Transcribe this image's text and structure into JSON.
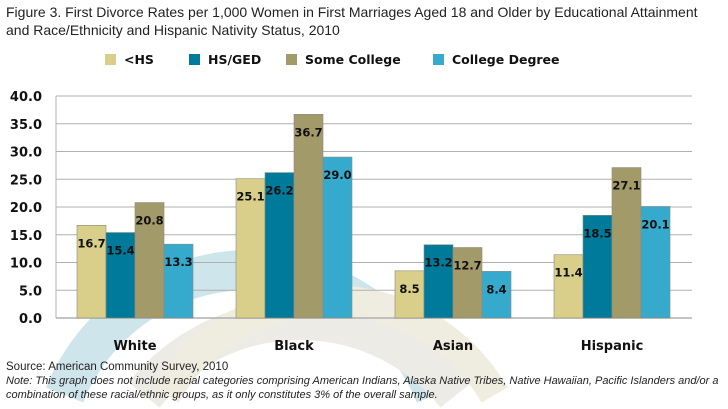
{
  "chart_data": {
    "type": "bar",
    "title": "Figure 3. First Divorce Rates per 1,000 Women in First Marriages Aged 18 and Older by Educational Attainment and Race/Ethnicity and Hispanic Nativity Status, 2010",
    "categories": [
      "White",
      "Black",
      "Asian",
      "Hispanic"
    ],
    "series": [
      {
        "name": "<HS",
        "color": "#d9cf8a",
        "values": [
          16.7,
          25.1,
          8.5,
          11.4
        ]
      },
      {
        "name": "HS/GED",
        "color": "#007a9a",
        "values": [
          15.4,
          26.2,
          13.2,
          18.5
        ]
      },
      {
        "name": "Some College",
        "color": "#a39a6a",
        "values": [
          20.8,
          36.7,
          12.7,
          27.1
        ]
      },
      {
        "name": "College Degree",
        "color": "#35aacd",
        "values": [
          13.3,
          29.0,
          8.4,
          20.1
        ]
      }
    ],
    "yticks": [
      "0.0",
      "5.0",
      "10.0",
      "15.0",
      "20.0",
      "25.0",
      "30.0",
      "35.0",
      "40.0"
    ],
    "ylim": [
      0,
      40
    ],
    "grid": true,
    "legend": "top",
    "xlabel": "",
    "ylabel": ""
  },
  "source": "Source: American Community Survey, 2010",
  "note": "Note: This graph does not include racial categories comprising American Indians, Alaska Native Tribes, Native Hawaiian, Pacific Islanders and/or a combination of these racial/ethnic groups, as it only constitutes 3% of the overall sample."
}
